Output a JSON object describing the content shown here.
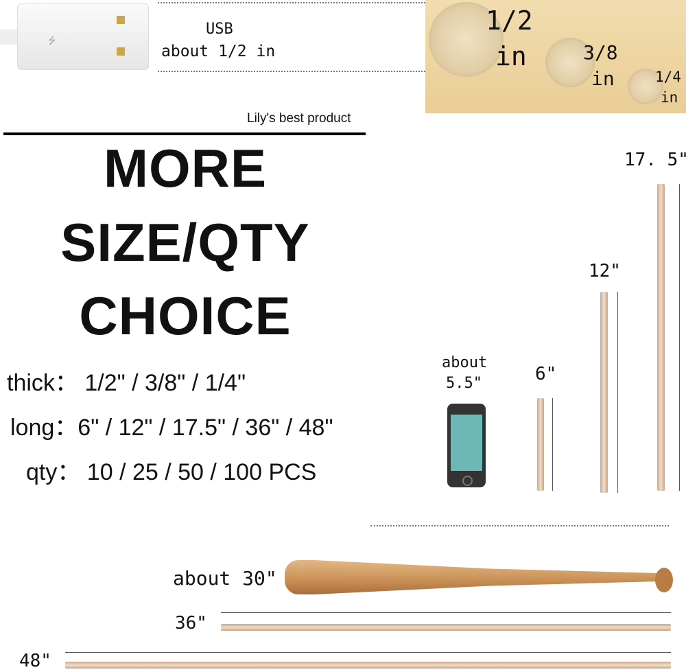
{
  "usb": {
    "title": "USB",
    "size": "about 1/2 in",
    "icon": "usb-icon"
  },
  "dowel_ends": [
    {
      "frac": "1/2",
      "unit": "in"
    },
    {
      "frac": "3/8",
      "unit": "in"
    },
    {
      "frac": "1/4",
      "unit": "in"
    }
  ],
  "brand_tagline": "Lily's best product",
  "headline": [
    "MORE",
    "SIZE/QTY",
    "CHOICE"
  ],
  "specs": {
    "thick": "thick：  1/2\"   /   3/8\"   /   1/4\"",
    "long": "long：6\" / 12\" / 17.5\" / 36\" / 48\"",
    "qty": "qty：  10 / 25 / 50 / 100 PCS"
  },
  "phone": {
    "line1": "about",
    "line2": "5.5\"",
    "icon": "smartphone-icon"
  },
  "lengths": {
    "l6": "6\"",
    "l12": "12\"",
    "l175": "17. 5\"",
    "bat": "about  30\"",
    "l36": "36\"",
    "l48": "48\""
  },
  "colors": {
    "wood": "#e9d2b8",
    "phone_screen": "#6bb8b6",
    "phone_body": "#333333"
  }
}
